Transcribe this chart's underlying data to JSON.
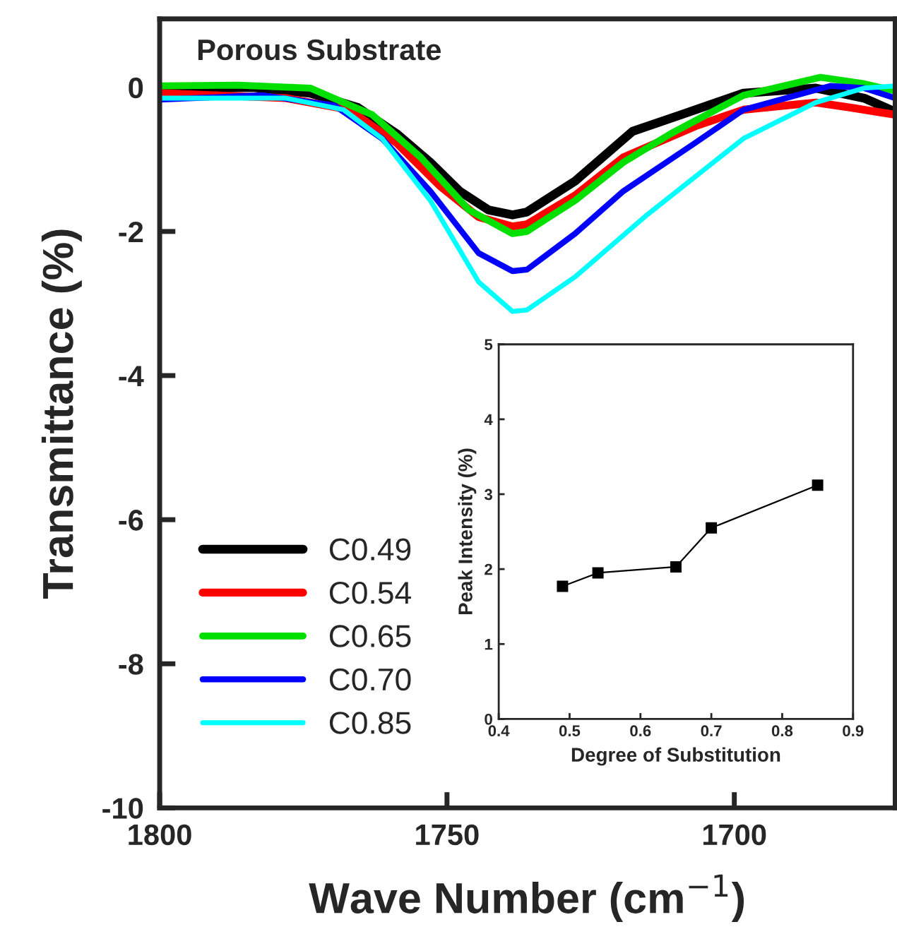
{
  "chart_data": [
    {
      "type": "line",
      "title": "Porous Substrate",
      "xlabel": "Wave Number (cm$^{−1}$)",
      "ylabel": "Transmittance (%)",
      "xlim": [
        1800,
        1672
      ],
      "ylim": [
        -10,
        0.95
      ],
      "xticks": [
        1800,
        1750,
        1700
      ],
      "yticks": [
        0,
        -2,
        -4,
        -6,
        -8,
        -10
      ],
      "grid": false,
      "legend": "bottom left",
      "line_style": "solid",
      "series": [
        {
          "name": "C0.49",
          "color": "#000000",
          "x": [
            1800,
            1783.9,
            1773.8,
            1765.5,
            1758.8,
            1752.9,
            1747.8,
            1742.8,
            1738.6,
            1736.1,
            1727.7,
            1717.7,
            1709.3,
            1698.4,
            1685.8,
            1677.4,
            1672
          ],
          "values": [
            -0.03,
            0.0,
            -0.08,
            -0.28,
            -0.64,
            -1.04,
            -1.44,
            -1.7,
            -1.77,
            -1.73,
            -1.3,
            -0.61,
            -0.38,
            -0.08,
            -0.01,
            -0.15,
            -0.34
          ]
        },
        {
          "name": "C0.54",
          "color": "#ff0000",
          "x": [
            1800,
            1778,
            1767.1,
            1758.8,
            1751.2,
            1744.5,
            1738.6,
            1736.1,
            1727.7,
            1719.3,
            1706.8,
            1698.4,
            1685.8,
            1679.9,
            1672
          ],
          "values": [
            -0.08,
            -0.15,
            -0.31,
            -0.77,
            -1.37,
            -1.8,
            -1.93,
            -1.9,
            -1.5,
            -0.97,
            -0.54,
            -0.31,
            -0.21,
            -0.28,
            -0.38
          ]
        },
        {
          "name": "C0.65",
          "color": "#00e000",
          "x": [
            1800,
            1786.4,
            1773.8,
            1763,
            1754.6,
            1746.2,
            1738.6,
            1736.1,
            1727.7,
            1719.3,
            1711,
            1698.4,
            1685,
            1677.4,
            1672
          ],
          "values": [
            0.02,
            0.03,
            -0.01,
            -0.38,
            -0.97,
            -1.7,
            -2.03,
            -2.0,
            -1.57,
            -1.04,
            -0.64,
            -0.11,
            0.14,
            0.05,
            -0.05
          ]
        },
        {
          "name": "C0.70",
          "color": "#0000ff",
          "x": [
            1800,
            1782.2,
            1769.6,
            1761.3,
            1752.9,
            1744.5,
            1738.6,
            1736.1,
            1727.7,
            1719.3,
            1706.8,
            1698.4,
            1683.3,
            1677.4,
            1672
          ],
          "values": [
            -0.17,
            -0.11,
            -0.25,
            -0.71,
            -1.44,
            -2.3,
            -2.55,
            -2.53,
            -2.03,
            -1.44,
            -0.77,
            -0.31,
            0.02,
            -0.01,
            -0.15
          ]
        },
        {
          "name": "C0.85",
          "color": "#00ffff",
          "x": [
            1800,
            1778,
            1768,
            1761.3,
            1752.9,
            1744.5,
            1738.6,
            1736.1,
            1727.7,
            1715.2,
            1698.4,
            1685.8,
            1677.4,
            1672
          ],
          "values": [
            -0.15,
            -0.15,
            -0.31,
            -0.71,
            -1.57,
            -2.7,
            -3.11,
            -3.09,
            -2.63,
            -1.77,
            -0.71,
            -0.21,
            -0.01,
            0.02
          ]
        }
      ]
    },
    {
      "type": "line",
      "xlabel": "Degree of Substitution",
      "ylabel": "Peak Intensity (%)",
      "xlim": [
        0.4,
        0.9
      ],
      "ylim": [
        0,
        5
      ],
      "xticks": [
        {
          "value": 0.4,
          "label": "0.4"
        },
        {
          "value": 0.5,
          "label": "0.5"
        },
        {
          "value": 0.6,
          "label": "0.6"
        },
        {
          "value": 0.7,
          "label": "0.7"
        },
        {
          "value": 0.8,
          "label": "0.8"
        },
        {
          "value": 0.9,
          "label": "0.9"
        }
      ],
      "yticks": [
        0,
        1,
        2,
        3,
        4,
        5
      ],
      "grid": false,
      "legend": false,
      "marker": "square",
      "line_style": "solid",
      "series": [
        {
          "color": "#000000",
          "x": [
            0.49,
            0.54,
            0.65,
            0.7,
            0.85
          ],
          "values": [
            1.77,
            1.95,
            2.03,
            2.55,
            3.12
          ]
        }
      ]
    }
  ]
}
